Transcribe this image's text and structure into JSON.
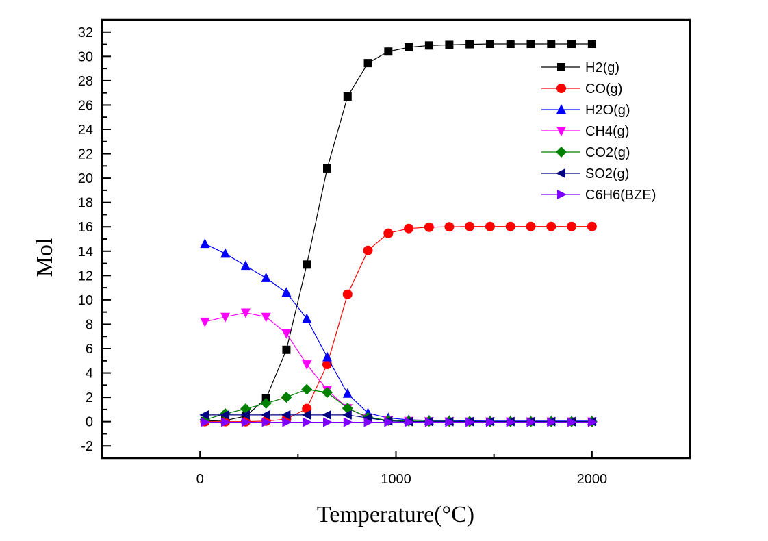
{
  "chart_data": {
    "type": "line",
    "title": "",
    "xlabel": "Temperature(°C)",
    "ylabel": "Mol",
    "xlim": [
      -500,
      2500
    ],
    "ylim": [
      -3,
      33
    ],
    "xticks": [
      0,
      1000,
      2000
    ],
    "xtick_labels": [
      "0",
      "1000",
      "2000"
    ],
    "x_minor_ticks": [
      -500,
      500,
      1500
    ],
    "yticks": [
      -2,
      0,
      2,
      4,
      6,
      8,
      10,
      12,
      14,
      16,
      18,
      20,
      22,
      24,
      26,
      28,
      30,
      32
    ],
    "ytick_labels": [
      "-2",
      "0",
      "2",
      "4",
      "6",
      "8",
      "10",
      "12",
      "14",
      "16",
      "18",
      "20",
      "22",
      "24",
      "26",
      "28",
      "30",
      "32"
    ],
    "grid": false,
    "legend_position": "top-right",
    "x": [
      25,
      129,
      233,
      337,
      441,
      545,
      649,
      753,
      857,
      961,
      1065,
      1169,
      1272,
      1376,
      1480,
      1584,
      1688,
      1792,
      1896,
      2000
    ],
    "series": [
      {
        "name": "H2(g)",
        "color": "#000000",
        "marker": "square",
        "values": [
          0.05,
          0.1,
          0.45,
          1.9,
          5.9,
          12.9,
          20.8,
          26.7,
          29.45,
          30.4,
          30.75,
          30.9,
          30.95,
          31.0,
          31.03,
          31.03,
          31.03,
          31.03,
          31.03,
          31.03
        ]
      },
      {
        "name": "CO(g)",
        "color": "#ff0000",
        "marker": "circle",
        "values": [
          0.0,
          0.0,
          0.0,
          0.05,
          0.2,
          1.07,
          4.7,
          10.46,
          14.06,
          15.47,
          15.86,
          15.97,
          16.0,
          16.03,
          16.03,
          16.03,
          16.03,
          16.03,
          16.03,
          16.03
        ]
      },
      {
        "name": "H2O(g)",
        "color": "#0000ff",
        "marker": "triangle-up",
        "values": [
          14.6,
          13.8,
          12.8,
          11.8,
          10.6,
          8.45,
          5.3,
          2.3,
          0.7,
          0.3,
          0.15,
          0.1,
          0.08,
          0.06,
          0.05,
          0.05,
          0.05,
          0.05,
          0.05,
          0.05
        ]
      },
      {
        "name": "CH4(g)",
        "color": "#ff00ff",
        "marker": "triangle-down",
        "values": [
          8.2,
          8.6,
          8.95,
          8.6,
          7.25,
          4.7,
          2.6,
          1.1,
          0.3,
          0.1,
          0.05,
          0.02,
          0.01,
          0.0,
          0.0,
          0.0,
          0.0,
          0.0,
          0.0,
          0.0
        ]
      },
      {
        "name": "CO2(g)",
        "color": "#008000",
        "marker": "diamond",
        "values": [
          0.15,
          0.65,
          1.05,
          1.5,
          2.0,
          2.65,
          2.4,
          1.1,
          0.35,
          0.1,
          0.05,
          0.03,
          0.02,
          0.01,
          0.0,
          0.0,
          0.0,
          0.0,
          0.0,
          0.0
        ]
      },
      {
        "name": "SO2(g)",
        "color": "#000080",
        "marker": "triangle-left",
        "values": [
          0.55,
          0.55,
          0.55,
          0.55,
          0.55,
          0.55,
          0.55,
          0.55,
          0.3,
          0.05,
          0.0,
          0.0,
          0.0,
          0.0,
          0.0,
          0.0,
          0.0,
          0.0,
          0.0,
          0.0
        ]
      },
      {
        "name": "C6H6(BZE)",
        "color": "#8000ff",
        "marker": "triangle-right",
        "values": [
          -0.05,
          -0.05,
          -0.05,
          -0.05,
          -0.05,
          -0.05,
          -0.05,
          -0.05,
          -0.05,
          -0.05,
          -0.05,
          -0.05,
          -0.05,
          -0.05,
          -0.05,
          -0.05,
          -0.05,
          -0.05,
          -0.05,
          -0.05
        ]
      }
    ]
  }
}
